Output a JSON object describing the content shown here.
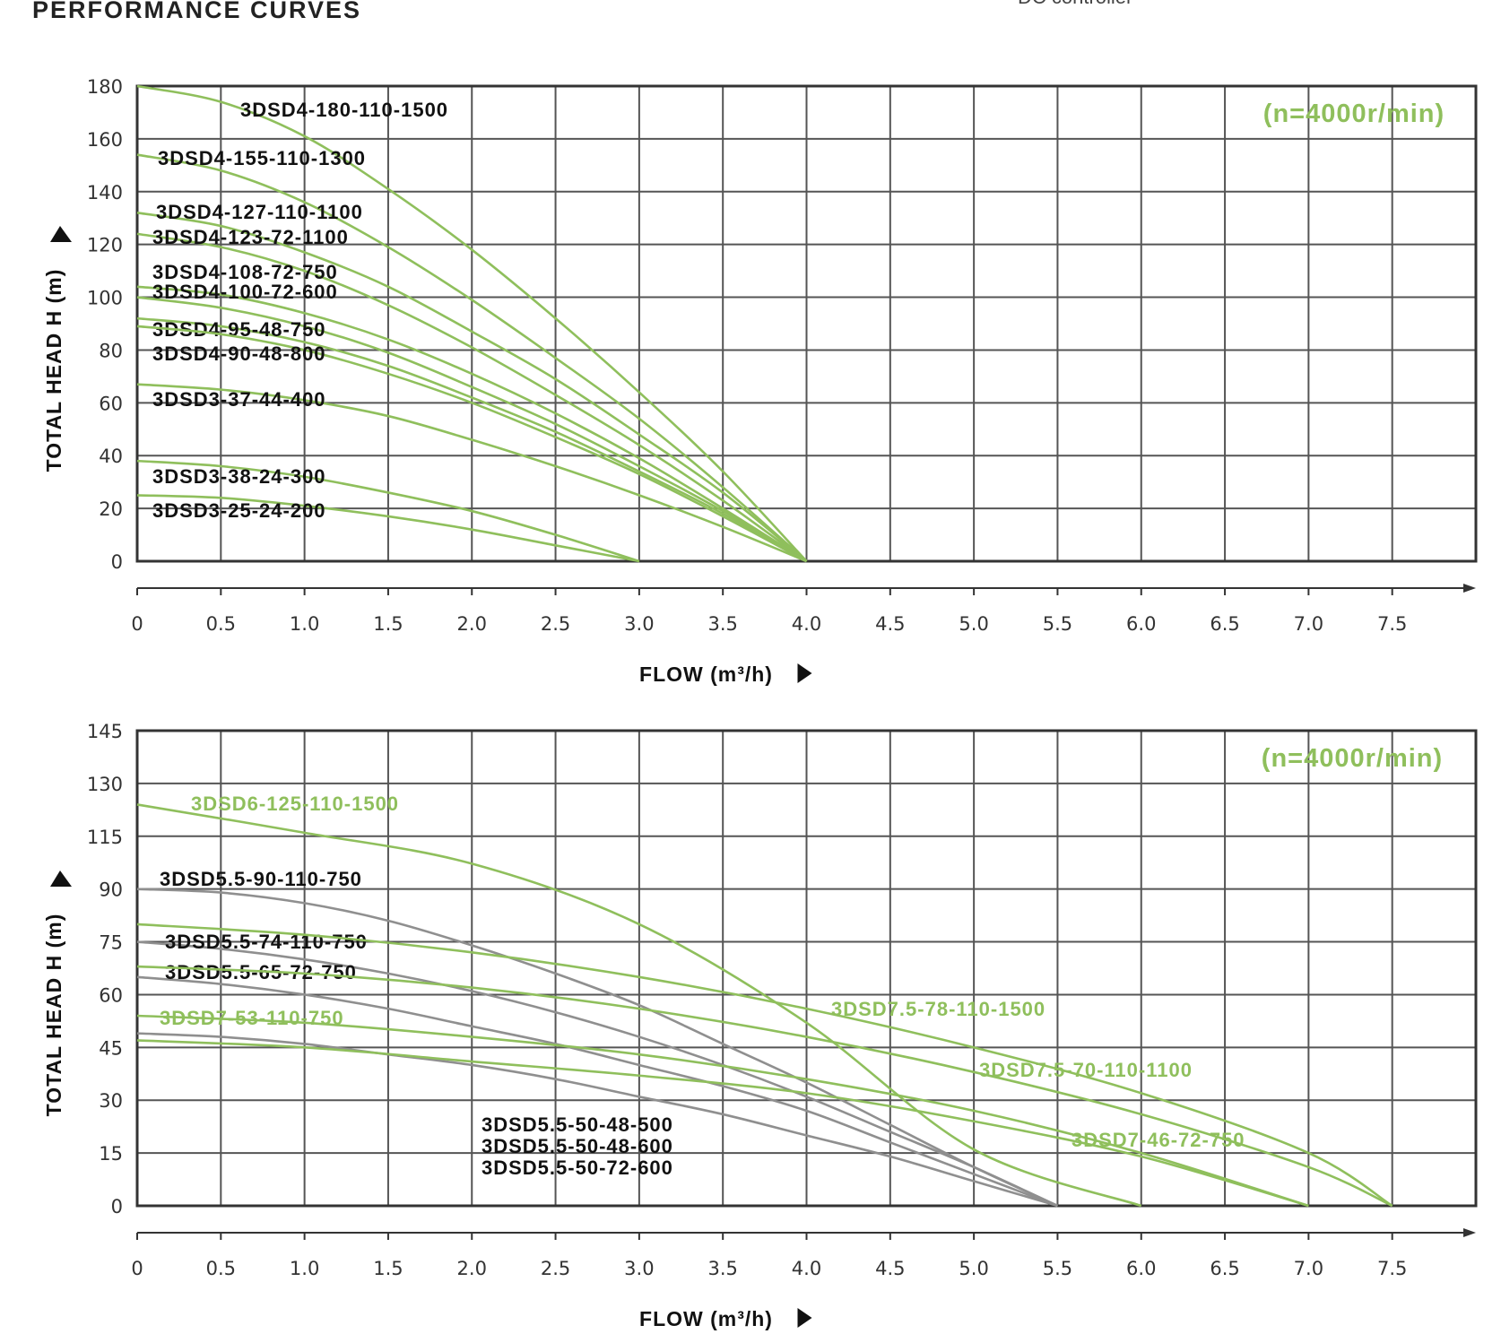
{
  "header": {
    "title": "PERFORMANCE  CURVES",
    "corner_note": "DC controller"
  },
  "colors": {
    "green": "#8fbf5c",
    "gray": "#8f8f8f",
    "label_dark": "#111111",
    "grid": "#555555"
  },
  "chart_data": [
    {
      "type": "line",
      "speed_note": "(n=4000r/min)",
      "xlabel": "FLOW (m³/h)",
      "ylabel": "TOTAL HEAD H (m)",
      "xlim": [
        0,
        8
      ],
      "ylim": [
        0,
        180
      ],
      "xticks": [
        "0",
        "0.5",
        "1.0",
        "1.5",
        "2.0",
        "2.5",
        "3.0",
        "3.5",
        "4.0",
        "4.5",
        "5.0",
        "5.5",
        "6.0",
        "6.5",
        "7.0",
        "7.5"
      ],
      "yticks": [
        "0",
        "20",
        "40",
        "60",
        "80",
        "100",
        "120",
        "140",
        "160",
        "180"
      ],
      "grid": true,
      "series": [
        {
          "name": "3DSD4-180-110-1500",
          "color": "green",
          "label_color": "dark",
          "x": [
            0,
            0.5,
            1.0,
            1.5,
            2.0,
            2.5,
            3.0,
            3.5,
            4.0
          ],
          "y": [
            180,
            174,
            161,
            141,
            118,
            92,
            64,
            34,
            0
          ]
        },
        {
          "name": "3DSD4-155-110-1300",
          "color": "green",
          "label_color": "dark",
          "x": [
            0,
            0.5,
            1.0,
            1.5,
            2.0,
            2.5,
            3.0,
            3.5,
            4.0
          ],
          "y": [
            154,
            148,
            136,
            119,
            99,
            77,
            54,
            28,
            0
          ]
        },
        {
          "name": "3DSD4-127-110-1100",
          "color": "green",
          "label_color": "dark",
          "x": [
            0,
            0.5,
            1.0,
            1.5,
            2.0,
            2.5,
            3.0,
            3.5,
            4.0
          ],
          "y": [
            132,
            127,
            117,
            104,
            87,
            69,
            48,
            26,
            0
          ]
        },
        {
          "name": "3DSD4-123-72-1100",
          "color": "green",
          "label_color": "dark",
          "x": [
            0,
            0.5,
            1.0,
            1.5,
            2.0,
            2.5,
            3.0,
            3.5,
            4.0
          ],
          "y": [
            124,
            119,
            110,
            97,
            81,
            63,
            44,
            23,
            0
          ]
        },
        {
          "name": "3DSD4-108-72-750",
          "color": "green",
          "label_color": "dark",
          "x": [
            0,
            0.5,
            1.0,
            1.5,
            2.0,
            2.5,
            3.0,
            3.5,
            4.0
          ],
          "y": [
            104,
            101,
            94,
            84,
            71,
            56,
            39,
            20,
            0
          ]
        },
        {
          "name": "3DSD4-100-72-600",
          "color": "green",
          "label_color": "dark",
          "x": [
            0,
            0.5,
            1.0,
            1.5,
            2.0,
            2.5,
            3.0,
            3.5,
            4.0
          ],
          "y": [
            100,
            96,
            89,
            79,
            66,
            52,
            36,
            19,
            0
          ]
        },
        {
          "name": "3DSD4-95-48-750",
          "color": "green",
          "label_color": "dark",
          "x": [
            0,
            0.5,
            1.0,
            1.5,
            2.0,
            2.5,
            3.0,
            3.5,
            4.0
          ],
          "y": [
            92,
            89,
            83,
            74,
            62,
            49,
            34,
            18,
            0
          ]
        },
        {
          "name": "3DSD4-90-48-800",
          "color": "green",
          "label_color": "dark",
          "x": [
            0,
            0.5,
            1.0,
            1.5,
            2.0,
            2.5,
            3.0,
            3.5,
            4.0
          ],
          "y": [
            89,
            86,
            80,
            71,
            60,
            47,
            33,
            17,
            0
          ]
        },
        {
          "name": "3DSD3-37-44-400",
          "color": "green",
          "label_color": "dark",
          "x": [
            0,
            0.5,
            1.0,
            1.5,
            2.0,
            2.5,
            3.0,
            3.5,
            4.0
          ],
          "y": [
            67,
            65,
            61,
            55,
            46,
            36,
            25,
            13,
            0
          ]
        },
        {
          "name": "3DSD3-38-24-300",
          "color": "green",
          "label_color": "dark",
          "x": [
            0,
            0.5,
            1.0,
            1.5,
            2.0,
            2.5,
            3.0
          ],
          "y": [
            38,
            36,
            32,
            26,
            19,
            10,
            0
          ]
        },
        {
          "name": "3DSD3-25-24-200",
          "color": "green",
          "label_color": "dark",
          "x": [
            0,
            0.5,
            1.0,
            1.5,
            2.0,
            2.5,
            3.0
          ],
          "y": [
            25,
            24,
            21,
            17,
            12,
            6,
            0
          ]
        }
      ]
    },
    {
      "type": "line",
      "speed_note": "(n=4000r/min)",
      "xlabel": "FLOW (m³/h)",
      "ylabel": "TOTAL HEAD H (m)",
      "xlim": [
        0,
        8
      ],
      "ylim": [
        0,
        145
      ],
      "xticks": [
        "0",
        "0.5",
        "1.0",
        "1.5",
        "2.0",
        "2.5",
        "3.0",
        "3.5",
        "4.0",
        "4.5",
        "5.0",
        "5.5",
        "6.0",
        "6.5",
        "7.0",
        "7.5"
      ],
      "yticks": [
        "0",
        "15",
        "30",
        "45",
        "60",
        "75",
        "90",
        "115",
        "130",
        "145"
      ],
      "grid": true,
      "series": [
        {
          "name": "3DSD6-125-110-1500",
          "color": "green",
          "label_color": "green",
          "x": [
            0,
            1.0,
            2.0,
            3.0,
            4.0,
            5.0,
            6.0
          ],
          "y": [
            124,
            116,
            102,
            80,
            52,
            16,
            0
          ]
        },
        {
          "name": "3DSD5.5-90-110-750",
          "color": "gray",
          "label_color": "dark",
          "x": [
            0,
            0.5,
            1.0,
            1.5,
            2.0,
            2.5,
            3.0,
            3.5,
            4.0,
            4.5,
            5.0,
            5.5
          ],
          "y": [
            90,
            89,
            86,
            81,
            74,
            66,
            57,
            46,
            35,
            23,
            11,
            0
          ]
        },
        {
          "name": "3DSD5.5-74-110-750",
          "color": "gray",
          "label_color": "dark",
          "x": [
            0,
            0.5,
            1.0,
            1.5,
            2.0,
            2.5,
            3.0,
            3.5,
            4.0,
            4.5,
            5.0,
            5.5
          ],
          "y": [
            75,
            73,
            70,
            66,
            61,
            55,
            48,
            40,
            31,
            21,
            11,
            0
          ]
        },
        {
          "name": "3DSD5.5-65-72-750",
          "color": "gray",
          "label_color": "dark",
          "x": [
            0,
            0.5,
            1.0,
            1.5,
            2.0,
            2.5,
            3.0,
            3.5,
            4.0,
            4.5,
            5.0,
            5.5
          ],
          "y": [
            65,
            63,
            60,
            56,
            51,
            46,
            40,
            34,
            27,
            18,
            9,
            0
          ]
        },
        {
          "name": "3DSD5.5-50-48-500",
          "color": "gray",
          "label_color": "dark",
          "x": [
            0,
            0.5,
            1.0,
            1.5,
            2.0,
            2.5,
            3.0,
            3.5,
            4.0,
            4.5,
            5.0,
            5.5
          ],
          "y": [
            49,
            48,
            46,
            43,
            40,
            36,
            31,
            26,
            20,
            14,
            7,
            0
          ]
        },
        {
          "name": "3DSD5.5-50-48-600",
          "color": "none",
          "label_color": "dark",
          "x": [],
          "y": []
        },
        {
          "name": "3DSD5.5-50-72-600",
          "color": "none",
          "label_color": "dark",
          "x": [],
          "y": []
        },
        {
          "name": "3DSD7-53-110-750",
          "color": "green",
          "label_color": "green",
          "x": [
            0,
            1.0,
            2.0,
            3.0,
            4.0,
            5.0,
            6.0,
            7.0
          ],
          "y": [
            54,
            52,
            48,
            43,
            36,
            27,
            15,
            0
          ]
        },
        {
          "name": "3DSD7-46-72-750",
          "color": "green",
          "label_color": "green",
          "x": [
            0,
            1.0,
            2.0,
            3.0,
            4.0,
            5.0,
            6.0,
            7.0
          ],
          "y": [
            47,
            45,
            41,
            37,
            32,
            24,
            14,
            0
          ]
        },
        {
          "name": "3DSD7.5-78-110-1500",
          "color": "green",
          "label_color": "green",
          "x": [
            0,
            1.0,
            2.0,
            3.0,
            4.0,
            5.0,
            6.0,
            7.0,
            7.5
          ],
          "y": [
            80,
            77,
            72,
            65,
            56,
            45,
            32,
            15,
            0
          ]
        },
        {
          "name": "3DSD7.5-70-110-1100",
          "color": "green",
          "label_color": "green",
          "x": [
            0,
            1.0,
            2.0,
            3.0,
            4.0,
            5.0,
            6.0,
            7.0,
            7.5
          ],
          "y": [
            68,
            66,
            62,
            56,
            48,
            38,
            26,
            11,
            0
          ]
        }
      ]
    }
  ]
}
